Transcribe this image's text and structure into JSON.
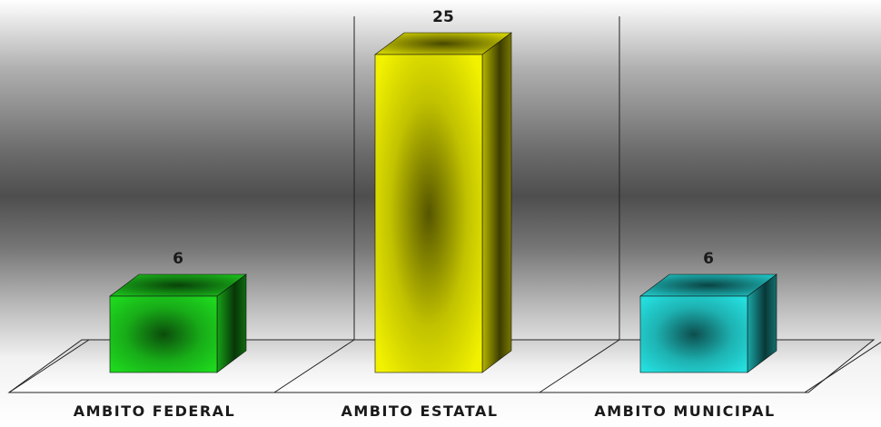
{
  "chart_data": {
    "type": "bar",
    "style": "3d",
    "categories": [
      "AMBITO FEDERAL",
      "AMBITO ESTATAL",
      "AMBITO MUNICIPAL"
    ],
    "values": [
      6,
      25,
      6
    ],
    "colors": [
      "#1ed81e",
      "#f2f200",
      "#25dede"
    ],
    "data_labels": [
      "6",
      "25",
      "6"
    ],
    "ylim": [
      0,
      25
    ],
    "grid": true,
    "legend": "none",
    "background": "gray gradient"
  }
}
